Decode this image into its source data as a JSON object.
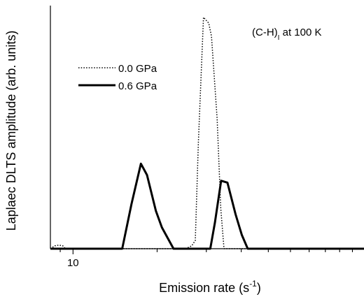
{
  "chart_data": {
    "type": "line",
    "title": "",
    "xlabel": "Emission rate (s",
    "xlabel_superscript": "-1",
    "xlabel_suffix": ")",
    "ylabel": "Laplaec DLTS amplitude (arb. units)",
    "x_scale": "log",
    "xlim": [
      8.3,
      110
    ],
    "ylim": [
      0,
      1.0
    ],
    "x_tick_labels": [
      {
        "value": 10,
        "label": "10"
      }
    ],
    "x_minor_ticks": [
      9,
      20,
      30,
      40,
      50,
      60,
      70,
      80,
      90,
      100
    ],
    "y_ticks_labeled": false,
    "grid": false,
    "legend_position": "upper-left",
    "annotation": {
      "main": "(C-H)",
      "subscript": "I",
      "suffix": " at 100 K"
    },
    "series": [
      {
        "name": "0.0 GPa",
        "style": "dotted",
        "color": "#000000",
        "points": [
          [
            8.3,
            0.0
          ],
          [
            8.6,
            0.012
          ],
          [
            8.9,
            0.015
          ],
          [
            9.2,
            0.012
          ],
          [
            9.4,
            0.0
          ],
          [
            25.3,
            0.0
          ],
          [
            26.6,
            0.012
          ],
          [
            27.4,
            0.035
          ],
          [
            28.1,
            0.45
          ],
          [
            29.3,
            0.98
          ],
          [
            30.6,
            0.955
          ],
          [
            31.3,
            0.9
          ],
          [
            32.8,
            0.55
          ],
          [
            33.8,
            0.17
          ],
          [
            34.7,
            0.0
          ],
          [
            110,
            0.0
          ]
        ]
      },
      {
        "name": "0.6 GPa",
        "style": "solid",
        "color": "#000000",
        "points": [
          [
            8.3,
            0.0
          ],
          [
            15.0,
            0.0
          ],
          [
            16.2,
            0.19
          ],
          [
            17.5,
            0.36
          ],
          [
            18.4,
            0.312
          ],
          [
            19.8,
            0.16
          ],
          [
            20.8,
            0.09
          ],
          [
            22.9,
            0.0
          ],
          [
            31.0,
            0.0
          ],
          [
            32.2,
            0.11
          ],
          [
            33.9,
            0.288
          ],
          [
            35.7,
            0.28
          ],
          [
            38.2,
            0.145
          ],
          [
            40.2,
            0.058
          ],
          [
            42.2,
            0.0
          ],
          [
            110,
            0.0
          ]
        ]
      }
    ]
  }
}
